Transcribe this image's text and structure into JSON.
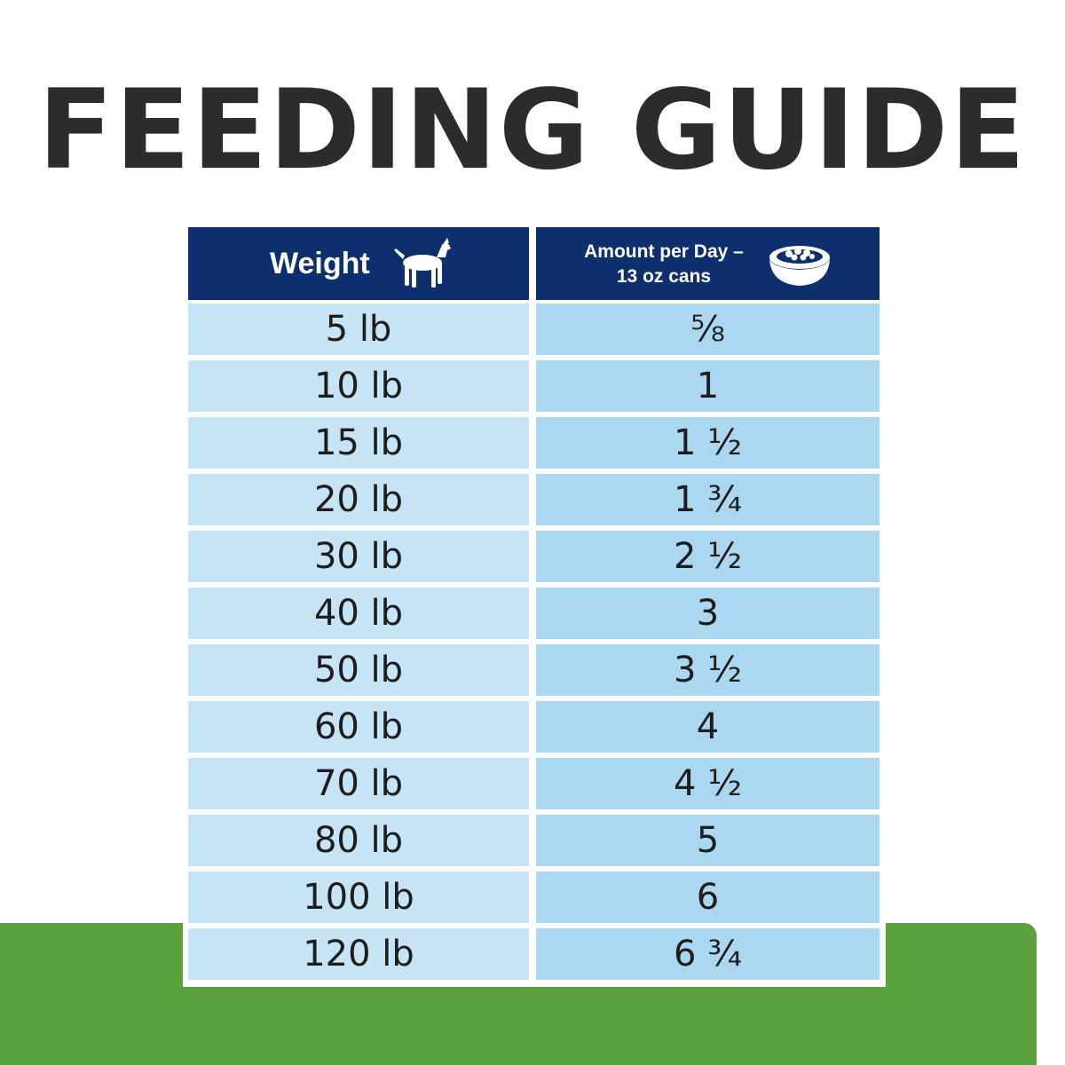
{
  "title": "FEEDING GUIDE",
  "table": {
    "headers": {
      "weight": "Weight",
      "amount_line1": "Amount per Day –",
      "amount_line2": "13 oz cans"
    },
    "icons": {
      "weight": "dog-icon",
      "amount": "food-bowl-icon"
    },
    "rows": [
      {
        "weight": "5 lb",
        "amount": "⅝"
      },
      {
        "weight": "10 lb",
        "amount": "1"
      },
      {
        "weight": "15 lb",
        "amount": "1 ½"
      },
      {
        "weight": "20 lb",
        "amount": "1 ¾"
      },
      {
        "weight": "30 lb",
        "amount": "2 ½"
      },
      {
        "weight": "40 lb",
        "amount": "3"
      },
      {
        "weight": "50 lb",
        "amount": "3 ½"
      },
      {
        "weight": "60 lb",
        "amount": "4"
      },
      {
        "weight": "70 lb",
        "amount": "4 ½"
      },
      {
        "weight": "80 lb",
        "amount": "5"
      },
      {
        "weight": "100 lb",
        "amount": "6"
      },
      {
        "weight": "120 lb",
        "amount": "6 ¾"
      }
    ]
  },
  "colors": {
    "header_bg": "#0d2f6e",
    "weight_cell_bg": "#c7e4f6",
    "amount_cell_bg": "#acd7f0",
    "band_green": "#5aa23d",
    "title_text": "#2c2c2c"
  }
}
